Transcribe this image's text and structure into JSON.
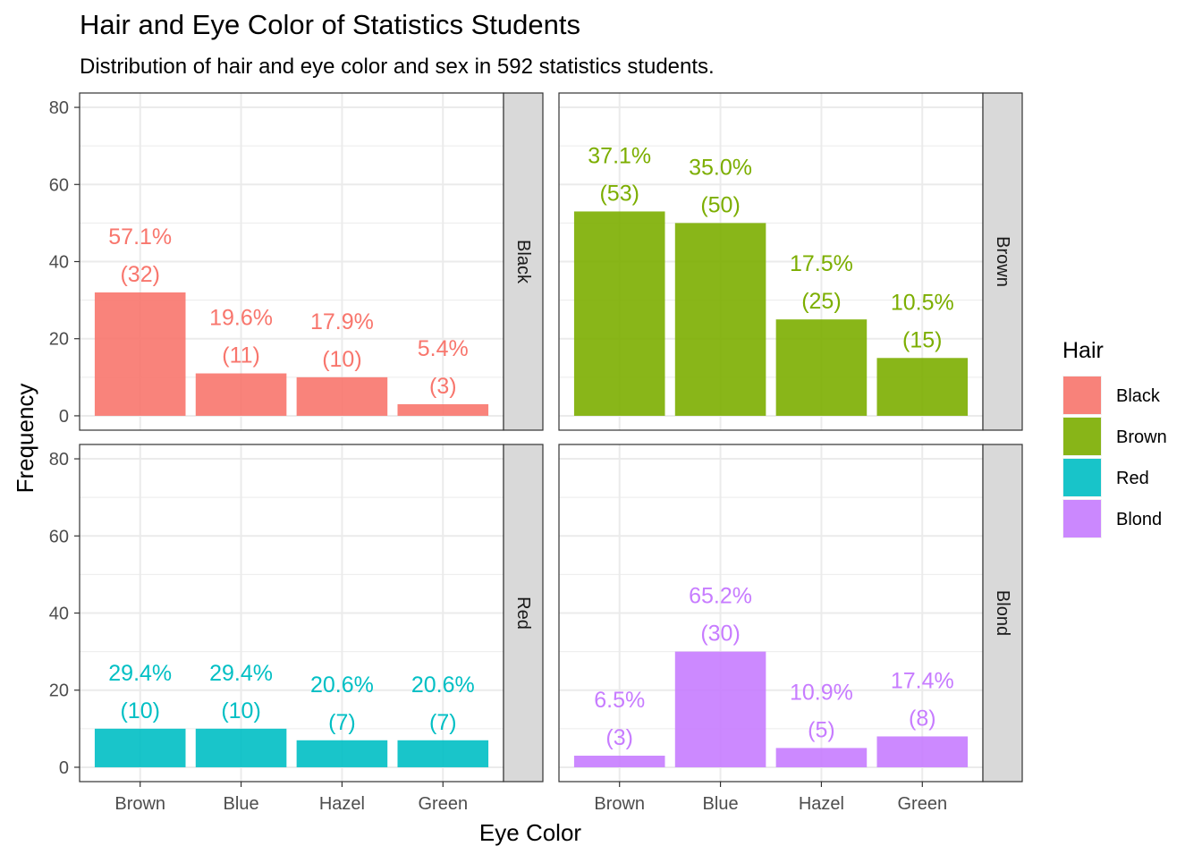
{
  "chart_data": {
    "type": "bar",
    "title": "Hair and Eye Color of Statistics Students",
    "subtitle": "Distribution of hair and eye color and sex in 592 statistics students.",
    "xlabel": "Eye Color",
    "ylabel": "Frequency",
    "ylim": [
      0,
      80
    ],
    "yticks": [
      0,
      20,
      40,
      60,
      80
    ],
    "categories": [
      "Brown",
      "Blue",
      "Hazel",
      "Green"
    ],
    "grid": true,
    "legend": {
      "title": "Hair",
      "position": "right",
      "entries": [
        "Black",
        "Brown",
        "Red",
        "Blond"
      ]
    },
    "colors": {
      "Black": "#F8766D",
      "Brown": "#7CAE00",
      "Red": "#00BFC4",
      "Blond": "#C77CFF"
    },
    "facet_layout": "2x2",
    "series": [
      {
        "name": "Black",
        "values": [
          32,
          11,
          10,
          3
        ],
        "labels": [
          "57.1%",
          "19.6%",
          "17.9%",
          "5.4%"
        ],
        "counts": [
          "(32)",
          "(11)",
          "(10)",
          "(3)"
        ]
      },
      {
        "name": "Brown",
        "values": [
          53,
          50,
          25,
          15
        ],
        "labels": [
          "37.1%",
          "35.0%",
          "17.5%",
          "10.5%"
        ],
        "counts": [
          "(53)",
          "(50)",
          "(25)",
          "(15)"
        ]
      },
      {
        "name": "Red",
        "values": [
          10,
          10,
          7,
          7
        ],
        "labels": [
          "29.4%",
          "29.4%",
          "20.6%",
          "20.6%"
        ],
        "counts": [
          "(10)",
          "(10)",
          "(7)",
          "(7)"
        ]
      },
      {
        "name": "Blond",
        "values": [
          3,
          30,
          5,
          8
        ],
        "labels": [
          "6.5%",
          "65.2%",
          "10.9%",
          "17.4%"
        ],
        "counts": [
          "(3)",
          "(30)",
          "(5)",
          "(8)"
        ]
      }
    ]
  }
}
